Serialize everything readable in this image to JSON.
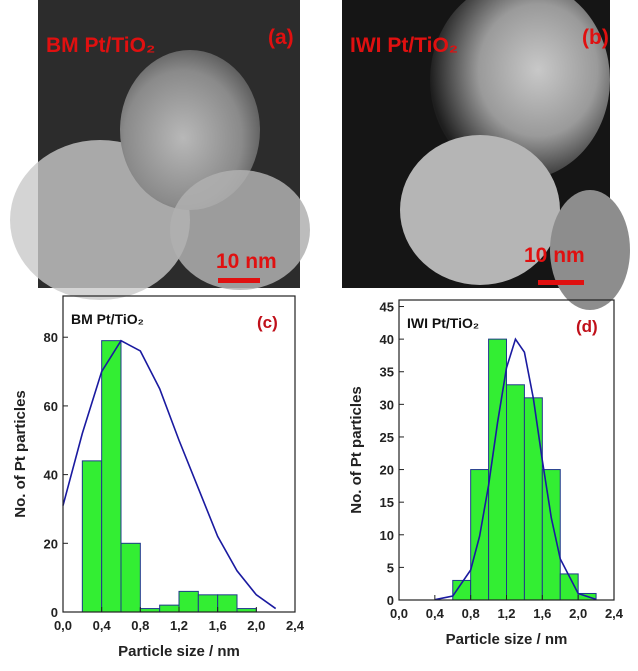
{
  "images": [
    {
      "sample": "BM Pt/TiO₂",
      "label": "(a)",
      "scale_bar": "10 nm"
    },
    {
      "sample": "IWI Pt/TiO₂",
      "label": "(b)",
      "scale_bar": "10 nm"
    }
  ],
  "chart_data": [
    {
      "type": "histogram",
      "title": "BM Pt/TiO₂",
      "label": "(c)",
      "x_label": "Particle size / nm",
      "y_label": "No. of Pt particles",
      "bins": [
        0.2,
        0.4,
        0.6,
        0.8,
        1.0,
        1.2,
        1.4,
        1.6,
        1.8,
        2.0,
        2.2
      ],
      "counts": [
        44,
        79,
        20,
        1,
        2,
        6,
        5,
        5,
        1,
        0
      ],
      "color": "#33ee33",
      "edge_color": "#1f3a8a",
      "fit": {
        "x": [
          0,
          0.2,
          0.4,
          0.6,
          0.8,
          1.0,
          1.2,
          1.4,
          1.6,
          1.8,
          2.0,
          2.2
        ],
        "y": [
          31,
          52,
          70,
          79,
          76,
          65,
          50,
          36,
          22,
          12,
          5,
          1
        ],
        "color": "#1a1aa0"
      },
      "xlim": [
        0,
        2.4
      ],
      "xticks": [
        {
          "value": 0,
          "label": "0,0"
        },
        {
          "value": 0.4,
          "label": "0,4"
        },
        {
          "value": 0.8,
          "label": "0,8"
        },
        {
          "value": 1.2,
          "label": "1,2"
        },
        {
          "value": 1.6,
          "label": "1,6"
        },
        {
          "value": 2.0,
          "label": "2,0"
        },
        {
          "value": 2.4,
          "label": "2,4"
        }
      ],
      "ylim": [
        0,
        92
      ],
      "yticks": [
        0,
        20,
        40,
        60,
        80
      ]
    },
    {
      "type": "histogram",
      "title": "IWI Pt/TiO₂",
      "label": "(d)",
      "x_label": "Particle size  / nm",
      "y_label": "No. of Pt particles",
      "bins": [
        0.6,
        0.8,
        1.0,
        1.2,
        1.4,
        1.6,
        1.8,
        2.0,
        2.2
      ],
      "counts": [
        3,
        20,
        40,
        33,
        31,
        20,
        4,
        1
      ],
      "color": "#33ee33",
      "edge_color": "#1f3a8a",
      "fit": {
        "x": [
          0.4,
          0.6,
          0.8,
          0.9,
          1.0,
          1.1,
          1.2,
          1.3,
          1.4,
          1.5,
          1.6,
          1.7,
          1.8,
          2.0,
          2.2
        ],
        "y": [
          0.05,
          0.6,
          4.6,
          9.8,
          17.6,
          27.2,
          35.6,
          40,
          38,
          30.9,
          21.4,
          12.6,
          6.3,
          1,
          0.1
        ],
        "color": "#1a1aa0"
      },
      "xlim": [
        0,
        2.4
      ],
      "xticks": [
        {
          "value": 0,
          "label": "0,0"
        },
        {
          "value": 0.4,
          "label": "0,4"
        },
        {
          "value": 0.8,
          "label": "0,8"
        },
        {
          "value": 1.2,
          "label": "1,2"
        },
        {
          "value": 1.6,
          "label": "1,6"
        },
        {
          "value": 2.0,
          "label": "2,0"
        },
        {
          "value": 2.4,
          "label": "2,4"
        }
      ],
      "ylim": [
        0,
        46
      ],
      "yticks": [
        0,
        5,
        10,
        15,
        20,
        25,
        30,
        35,
        40,
        45
      ]
    }
  ]
}
